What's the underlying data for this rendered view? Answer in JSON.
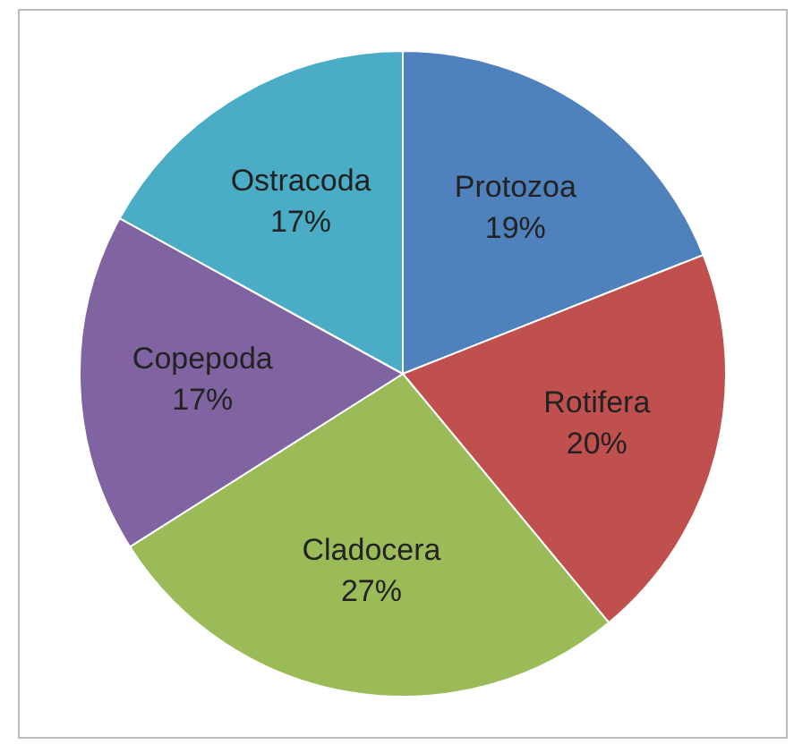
{
  "chart_data": {
    "type": "pie",
    "categories": [
      "Protozoa",
      "Rotifera",
      "Cladocera",
      "Copepoda",
      "Ostracoda"
    ],
    "values": [
      19,
      20,
      27,
      17,
      17
    ],
    "value_labels": [
      "19%",
      "20%",
      "27%",
      "17%",
      "17%"
    ],
    "colors": [
      "#4f81bd",
      "#c0504d",
      "#9bbb59",
      "#8064a2",
      "#4bacc6"
    ],
    "legend": false
  }
}
